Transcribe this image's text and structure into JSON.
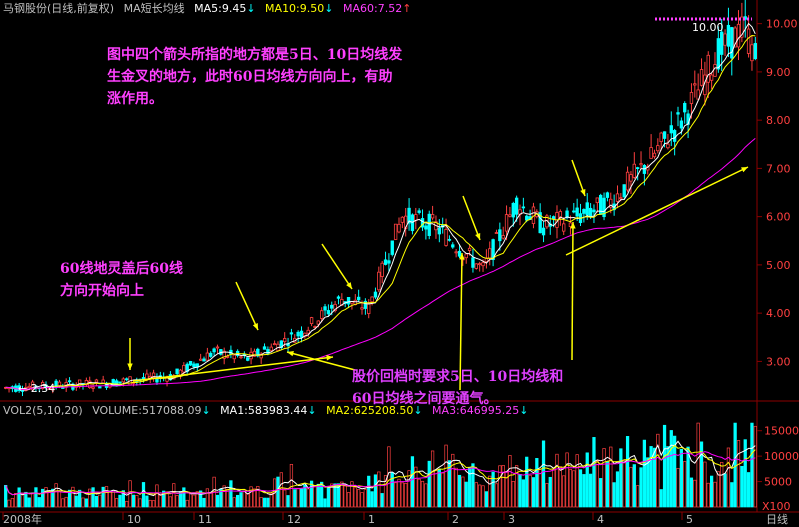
{
  "colors": {
    "up": "#ff4040",
    "down": "#00ffff",
    "ma_short": "#ffffff",
    "ma_mid": "#ffff00",
    "ma_long": "#ff00ff",
    "grid": "#8b0000",
    "label_magenta": "#ff40ff",
    "label_yellow": "#ffff00",
    "label_purple": "#e040ff"
  },
  "header": {
    "title": "马钢股份(日线,前复权)",
    "indicator": "MA短长均线",
    "ma5": "MA5:9.45",
    "ma10": "MA10:9.50",
    "ma60": "MA60:7.52"
  },
  "volume_header": {
    "title": "VOL2(5,10,20)",
    "volume": "VOLUME:517088.09",
    "ma1": "MA1:583983.44",
    "ma2": "MA2:625208.50",
    "ma3": "MA3:646995.25"
  },
  "annotations": {
    "top": "图中四个箭头所指的地方都是5日、10日均线发\n生金叉的地方，此时60日均线方向向上，有助\n涨作用。",
    "left": "60线地灵盖后60线\n方向开始向上",
    "bottom": "股价回档时要求5日、10日均线和\n60日均线之间要通气。"
  },
  "markers": {
    "high": "10.00",
    "low": "2.34"
  },
  "footer": {
    "period_label": "日线",
    "multiplier": "X100"
  },
  "chart_data": [
    {
      "type": "candlestick",
      "title": "马钢股份(日线,前复权)",
      "y_axis": {
        "ticks": [
          "3.00",
          "4.00",
          "5.00",
          "6.00",
          "7.00",
          "8.00",
          "9.00",
          "10.00"
        ],
        "range": [
          2.2,
          10.2
        ]
      },
      "x_axis": {
        "tick_labels": [
          "2008年",
          "10",
          "11",
          "12",
          "1",
          "2",
          "3",
          "4",
          "5"
        ]
      },
      "series": [
        {
          "name": "MA5",
          "last": 9.45
        },
        {
          "name": "MA10",
          "last": 9.5
        },
        {
          "name": "MA60",
          "last": 7.52
        }
      ],
      "annotations": {
        "high": 10.0,
        "low": 2.34
      }
    },
    {
      "type": "bar",
      "title": "VOL2(5,10,20)",
      "y_axis": {
        "ticks": [
          "5000",
          "10000",
          "15000"
        ],
        "unit": "X100"
      },
      "series": [
        {
          "name": "MA1",
          "last": 583983.44
        },
        {
          "name": "MA2",
          "last": 625208.5
        },
        {
          "name": "MA3",
          "last": 646995.25
        }
      ]
    }
  ]
}
